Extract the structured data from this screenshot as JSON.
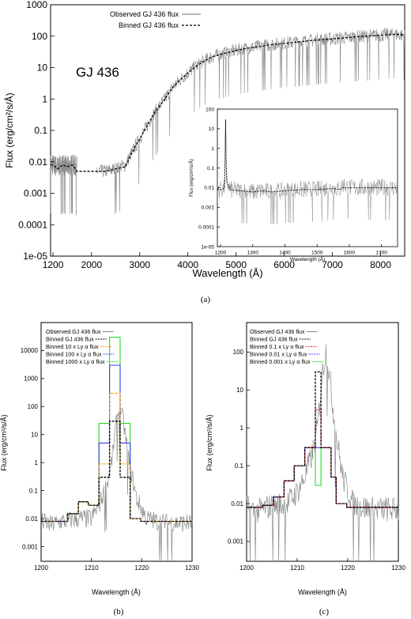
{
  "chart_data": [
    {
      "id": "a",
      "type": "line",
      "caption": "(a)",
      "annotation": "GJ 436",
      "xlabel": "Wavelength (Å)",
      "ylabel": "Flux (erg/cm²/s/Å)",
      "xlim": [
        1150,
        8500
      ],
      "ylim": [
        1e-05,
        1000
      ],
      "yscale": "log",
      "xticks": [
        "1200",
        "2000",
        "3000",
        "4000",
        "5000",
        "6000",
        "7000",
        "8000"
      ],
      "yticks": [
        "1e-05",
        "0.0001",
        "0.001",
        "0.01",
        "0.1",
        "1",
        "10",
        "100",
        "1000"
      ],
      "legend_position": "top-left",
      "series": [
        {
          "name": "Observed GJ 436 flux",
          "color": "#8c8c8c",
          "x": [
            1150,
            1200,
            1300,
            1400,
            1500,
            1600,
            1700,
            2100,
            2300,
            2500,
            2700,
            2900,
            3100,
            3300,
            3500,
            3700,
            3900,
            4100,
            4300,
            4500,
            4700,
            4900,
            5100,
            5300,
            5500,
            5700,
            5900,
            6100,
            6300,
            6500,
            6700,
            6900,
            7100,
            7300,
            7500,
            7700,
            7900,
            8100,
            8300,
            8500
          ],
          "y": [
            0.008,
            0.008,
            0.007,
            0.008,
            0.007,
            0.008,
            0.007,
            0.005,
            0.005,
            0.006,
            0.008,
            0.03,
            0.1,
            0.35,
            0.9,
            2.5,
            5,
            9,
            15,
            22,
            27,
            32,
            38,
            43,
            47,
            53,
            57,
            61,
            66,
            71,
            75,
            80,
            85,
            90,
            95,
            100,
            105,
            110,
            115,
            105
          ]
        },
        {
          "name": "Binned GJ 436 flux",
          "color": "#000000",
          "x": [
            1150,
            1200,
            1300,
            1400,
            1500,
            1600,
            1700,
            1900,
            2100,
            2300,
            2500,
            2700,
            2900,
            3100,
            3300,
            3500,
            3700,
            3900,
            4100,
            4300,
            4500,
            4700,
            4900,
            5100,
            5300,
            5500,
            5700,
            5900,
            6100,
            6300,
            6500,
            6700,
            6900,
            7100,
            7300,
            7500,
            7700,
            7900,
            8100,
            8300,
            8500
          ],
          "y": [
            0.008,
            0.008,
            0.006,
            0.008,
            0.007,
            0.008,
            0.005,
            0.005,
            0.005,
            0.005,
            0.006,
            0.007,
            0.03,
            0.1,
            0.35,
            0.9,
            2.5,
            5,
            9,
            15,
            22,
            27,
            32,
            38,
            43,
            47,
            53,
            57,
            61,
            66,
            71,
            75,
            80,
            85,
            90,
            95,
            100,
            105,
            110,
            115,
            110
          ]
        }
      ]
    },
    {
      "id": "a-inset",
      "type": "line",
      "xlabel": "Wavelength (Å)",
      "ylabel": "Flux (erg/cm²/s/Å)",
      "xlim": [
        1190,
        1750
      ],
      "ylim": [
        1e-05,
        100
      ],
      "yscale": "log",
      "xticks": [
        "1200",
        "1300",
        "1400",
        "1500",
        "1600",
        "1700"
      ],
      "yticks": [
        "1e-05",
        "0.0001",
        "0.001",
        "0.01",
        "0.1",
        "1",
        "10",
        "100"
      ],
      "series": [
        {
          "name": "Observed GJ 436 flux",
          "color": "#8c8c8c",
          "x": [
            1190,
            1205,
            1212,
            1214,
            1215.5,
            1217,
            1219,
            1230,
            1260,
            1300,
            1330,
            1360,
            1400,
            1450,
            1500,
            1550,
            1570,
            1580,
            1600,
            1650,
            1700,
            1750
          ],
          "y": [
            0.008,
            0.008,
            0.01,
            0.2,
            110,
            0.3,
            0.02,
            0.008,
            0.007,
            0.006,
            0.007,
            0.006,
            0.007,
            0.008,
            0.008,
            0.01,
            0.008,
            0.015,
            0.01,
            0.01,
            0.01,
            0.01
          ]
        },
        {
          "name": "Binned GJ 436 flux",
          "color": "#000000",
          "x": [
            1190,
            1205,
            1212,
            1214,
            1215.5,
            1217,
            1219,
            1230,
            1260,
            1300,
            1330,
            1360,
            1400,
            1450,
            1500,
            1550,
            1570,
            1580,
            1600,
            1650,
            1700,
            1750
          ],
          "y": [
            0.008,
            0.008,
            0.01,
            0.3,
            30,
            0.3,
            0.02,
            0.008,
            0.007,
            0.006,
            0.007,
            0.006,
            0.007,
            0.008,
            0.008,
            0.009,
            0.008,
            0.01,
            0.01,
            0.01,
            0.01,
            0.01
          ]
        }
      ]
    },
    {
      "id": "b",
      "type": "line",
      "caption": "(b)",
      "xlabel": "Wavelength (Å)",
      "ylabel": "Flux (erg/cm²/s/Å)",
      "xlim": [
        1200,
        1230
      ],
      "ylim": [
        0.0003,
        100000
      ],
      "yscale": "log",
      "xticks": [
        "1200",
        "1210",
        "1220",
        "1230"
      ],
      "yticks": [
        "0.001",
        "0.01",
        "0.1",
        "1",
        "10",
        "100",
        "1000",
        "10000"
      ],
      "legend_position": "top-left",
      "bin_edges": [
        1200,
        1205.3,
        1207.4,
        1209.4,
        1211.5,
        1213.6,
        1215.7,
        1217.7,
        1219.8,
        1221.9,
        1230
      ],
      "series": [
        {
          "name": "Observed GJ 436 flux",
          "color": "#8c8c8c",
          "x": [
            1200,
            1202,
            1204,
            1206,
            1208,
            1210,
            1211.5,
            1213,
            1214,
            1215,
            1215.7,
            1216.4,
            1217.5,
            1219,
            1221,
            1223,
            1225,
            1227,
            1230
          ],
          "y": [
            0.008,
            0.006,
            0.008,
            0.009,
            0.01,
            0.01,
            0.03,
            0.15,
            1,
            30,
            110,
            25,
            1,
            0.05,
            0.01,
            0.008,
            0.007,
            0.007,
            0.007
          ]
        },
        {
          "name": "Binned GJ 436 flux",
          "color": "#000000",
          "values": [
            0.008,
            0.015,
            0.04,
            0.03,
            0.3,
            30,
            0.3,
            0.01,
            0.008,
            0.008
          ]
        },
        {
          "name": "Binned 10 x Ly α flux",
          "color": "#ffa500",
          "values": [
            0.008,
            0.015,
            0.04,
            0.03,
            0.9,
            300,
            0.9,
            0.01,
            0.008,
            0.008
          ]
        },
        {
          "name": "Binned 100 x Ly α flux",
          "color": "#3a3aff",
          "values": [
            0.008,
            0.015,
            0.04,
            0.03,
            5,
            3000,
            5,
            0.01,
            0.008,
            0.008
          ]
        },
        {
          "name": "Binned 1000 x Ly α flux",
          "color": "#22dd22",
          "values": [
            0.008,
            0.015,
            0.04,
            0.03,
            25,
            30000,
            25,
            0.01,
            0.008,
            0.008
          ]
        }
      ]
    },
    {
      "id": "c",
      "type": "line",
      "caption": "(c)",
      "xlabel": "Wavelength (Å)",
      "ylabel": "Flux (erg/cm²/s/Å)",
      "xlim": [
        1200,
        1230
      ],
      "ylim": [
        0.0003,
        600
      ],
      "yscale": "log",
      "xticks": [
        "1200",
        "1210",
        "1220",
        "1230"
      ],
      "yticks": [
        "0.001",
        "0.01",
        "0.1",
        "1",
        "10",
        "100"
      ],
      "legend_position": "top-left",
      "bin_edges": [
        1200,
        1203.1,
        1205.3,
        1207.4,
        1209.4,
        1211.5,
        1213.6,
        1214.7,
        1216.7,
        1217.7,
        1219.8,
        1221.9,
        1230
      ],
      "series": [
        {
          "name": "Observed GJ 436 flux",
          "color": "#8c8c8c",
          "x": [
            1200,
            1202,
            1204,
            1206,
            1208,
            1210,
            1211.5,
            1213,
            1214,
            1215,
            1215.7,
            1216.4,
            1217.5,
            1219,
            1221,
            1223,
            1225,
            1227,
            1230
          ],
          "y": [
            0.008,
            0.006,
            0.008,
            0.009,
            0.01,
            0.02,
            0.05,
            0.2,
            1,
            30,
            110,
            25,
            1,
            0.05,
            0.01,
            0.008,
            0.007,
            0.007,
            0.007
          ]
        },
        {
          "name": "Binned GJ 436 flux",
          "color": "#000000",
          "values": [
            0.008,
            0.009,
            0.015,
            0.04,
            0.1,
            0.3,
            30,
            0.3,
            0.05,
            0.01,
            0.008,
            0.008
          ]
        },
        {
          "name": "Binned 0.1 x Ly α flux",
          "color": "#ff2020",
          "values": [
            0.008,
            0.009,
            0.015,
            0.04,
            0.1,
            0.3,
            3,
            0.3,
            0.05,
            0.01,
            0.008,
            0.008
          ]
        },
        {
          "name": "Binned 0.01 x Ly α flux",
          "color": "#3a3aff",
          "values": [
            0.008,
            0.009,
            0.015,
            0.04,
            0.1,
            0.3,
            0.3,
            0.3,
            0.05,
            0.01,
            0.008,
            0.008
          ]
        },
        {
          "name": "Binned 0.001 x Ly α flux",
          "color": "#22dd22",
          "values": [
            0.008,
            0.009,
            0.015,
            0.04,
            0.1,
            0.3,
            0.03,
            0.3,
            0.05,
            0.01,
            0.008,
            0.008
          ]
        }
      ]
    }
  ]
}
